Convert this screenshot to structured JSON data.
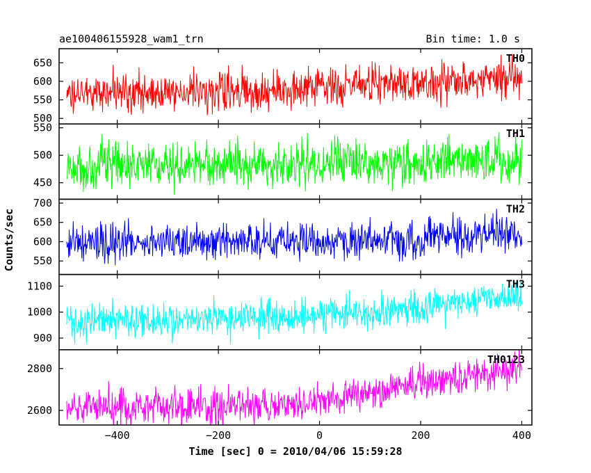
{
  "header": {
    "title": "ae100406155928_wam1_trn",
    "bin_time": "Bin time: 1.0 s"
  },
  "axes": {
    "xlabel": "Time [sec] 0 = 2010/04/06 15:59:28",
    "ylabel": "Counts/sec"
  },
  "chart_data": {
    "type": "line",
    "xlim": [
      -515,
      420
    ],
    "x_range": [
      -500,
      400
    ],
    "x_step": 1,
    "xticks": [
      -400,
      -200,
      0,
      200,
      400
    ],
    "xtick_labels": [
      "−400",
      "−200",
      "0",
      "200",
      "400"
    ],
    "grid": false,
    "panels": [
      {
        "name": "TH0",
        "color": "#ff0000",
        "ylim": [
          485,
          688
        ],
        "yticks": [
          500,
          550,
          600,
          650
        ],
        "trend": {
          "x": [
            -500,
            -100,
            0,
            200,
            400
          ],
          "y": [
            568,
            573,
            583,
            596,
            608
          ]
        },
        "noise_sd": 26
      },
      {
        "name": "TH1",
        "color": "#00ff00",
        "ylim": [
          420,
          557
        ],
        "yticks": [
          450,
          500,
          550
        ],
        "trend": {
          "x": [
            -500,
            0,
            400
          ],
          "y": [
            478,
            484,
            492
          ]
        },
        "noise_sd": 21
      },
      {
        "name": "TH2",
        "color": "#0000ff",
        "ylim": [
          515,
          710
        ],
        "yticks": [
          550,
          600,
          650,
          700
        ],
        "trend": {
          "x": [
            -500,
            0,
            200,
            400
          ],
          "y": [
            596,
            600,
            610,
            623
          ]
        },
        "noise_sd": 24
      },
      {
        "name": "TH3",
        "color": "#00ffff",
        "ylim": [
          855,
          1145
        ],
        "yticks": [
          900,
          1000,
          1100
        ],
        "trend": {
          "x": [
            -500,
            -100,
            100,
            400
          ],
          "y": [
            965,
            975,
            1000,
            1055
          ]
        },
        "noise_sd": 32
      },
      {
        "name": "TH0123",
        "color": "#ff00ff",
        "ylim": [
          2530,
          2890
        ],
        "yticks": [
          2600,
          2800
        ],
        "ytick_labels": [
          "2600",
          "2800"
        ],
        "trend": {
          "x": [
            -500,
            -100,
            0,
            200,
            400
          ],
          "y": [
            2610,
            2625,
            2650,
            2720,
            2805
          ]
        },
        "noise_sd": 42
      }
    ]
  }
}
